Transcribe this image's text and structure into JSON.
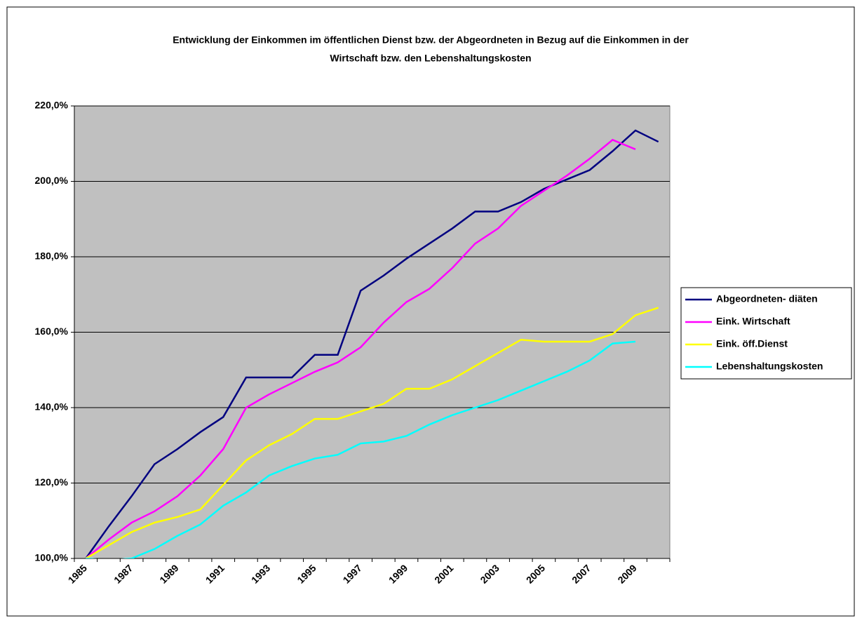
{
  "chart_data": {
    "type": "line",
    "title": [
      "Entwicklung der Einkommen im öffentlichen Dienst bzw. der Abgeordneten in Bezug auf die Einkommen in der",
      "Wirtschaft bzw. den Lebenshaltungskosten"
    ],
    "categories": [
      "1985",
      null,
      "1987",
      null,
      "1989",
      null,
      "1991",
      null,
      "1993",
      null,
      "1995",
      null,
      "1997",
      null,
      "1999",
      null,
      "2001",
      null,
      "2003",
      null,
      "2005",
      null,
      "2007",
      null,
      "2009",
      null
    ],
    "series": [
      {
        "name": "Abgeordneten- diäten",
        "color": "#000080",
        "values": [
          100,
          108.5,
          116.5,
          125,
          129,
          133.5,
          137.5,
          148,
          148,
          148,
          154,
          154,
          171,
          175,
          179.5,
          183.5,
          187.5,
          192,
          192,
          194.5,
          198,
          200.5,
          203,
          208,
          213.5,
          210.5
        ]
      },
      {
        "name": "Eink. Wirtschaft",
        "color": "#ff00ff",
        "values": [
          100,
          105,
          109.5,
          112.5,
          116.5,
          122,
          129,
          140,
          143.5,
          146.5,
          149.5,
          152,
          156,
          162.5,
          168,
          171.5,
          177,
          183.5,
          187.5,
          193.5,
          197.5,
          201.5,
          206,
          211,
          208.5,
          null
        ]
      },
      {
        "name": "Eink. öff.Dienst",
        "color": "#ffff00",
        "values": [
          100,
          103.5,
          107,
          109.5,
          111,
          113,
          119.5,
          126,
          130,
          133,
          137,
          137,
          139,
          141,
          145,
          145,
          147.5,
          151,
          154.5,
          158,
          157.5,
          157.5,
          157.5,
          159.5,
          164.5,
          166.5
        ]
      },
      {
        "name": "Lebenshaltungskosten",
        "color": "#00ffff",
        "values": [
          100,
          99.5,
          100,
          102.5,
          106,
          109,
          114,
          117.5,
          122,
          124.5,
          126.5,
          127.5,
          130.5,
          131,
          132.5,
          135.5,
          138,
          140,
          142,
          144.5,
          147,
          149.5,
          152.5,
          157,
          157.5,
          null
        ]
      }
    ],
    "ylim": [
      100,
      220
    ],
    "yticks": [
      {
        "value": 100,
        "label": "100,0%"
      },
      {
        "value": 120,
        "label": "120,0%"
      },
      {
        "value": 140,
        "label": "140,0%"
      },
      {
        "value": 160,
        "label": "160,0%"
      },
      {
        "value": 180,
        "label": "180,0%"
      },
      {
        "value": 200,
        "label": "200,0%"
      },
      {
        "value": 220,
        "label": "220,0%"
      }
    ],
    "grid": true,
    "legend": "right",
    "plot_color": "#c0c0c0"
  }
}
